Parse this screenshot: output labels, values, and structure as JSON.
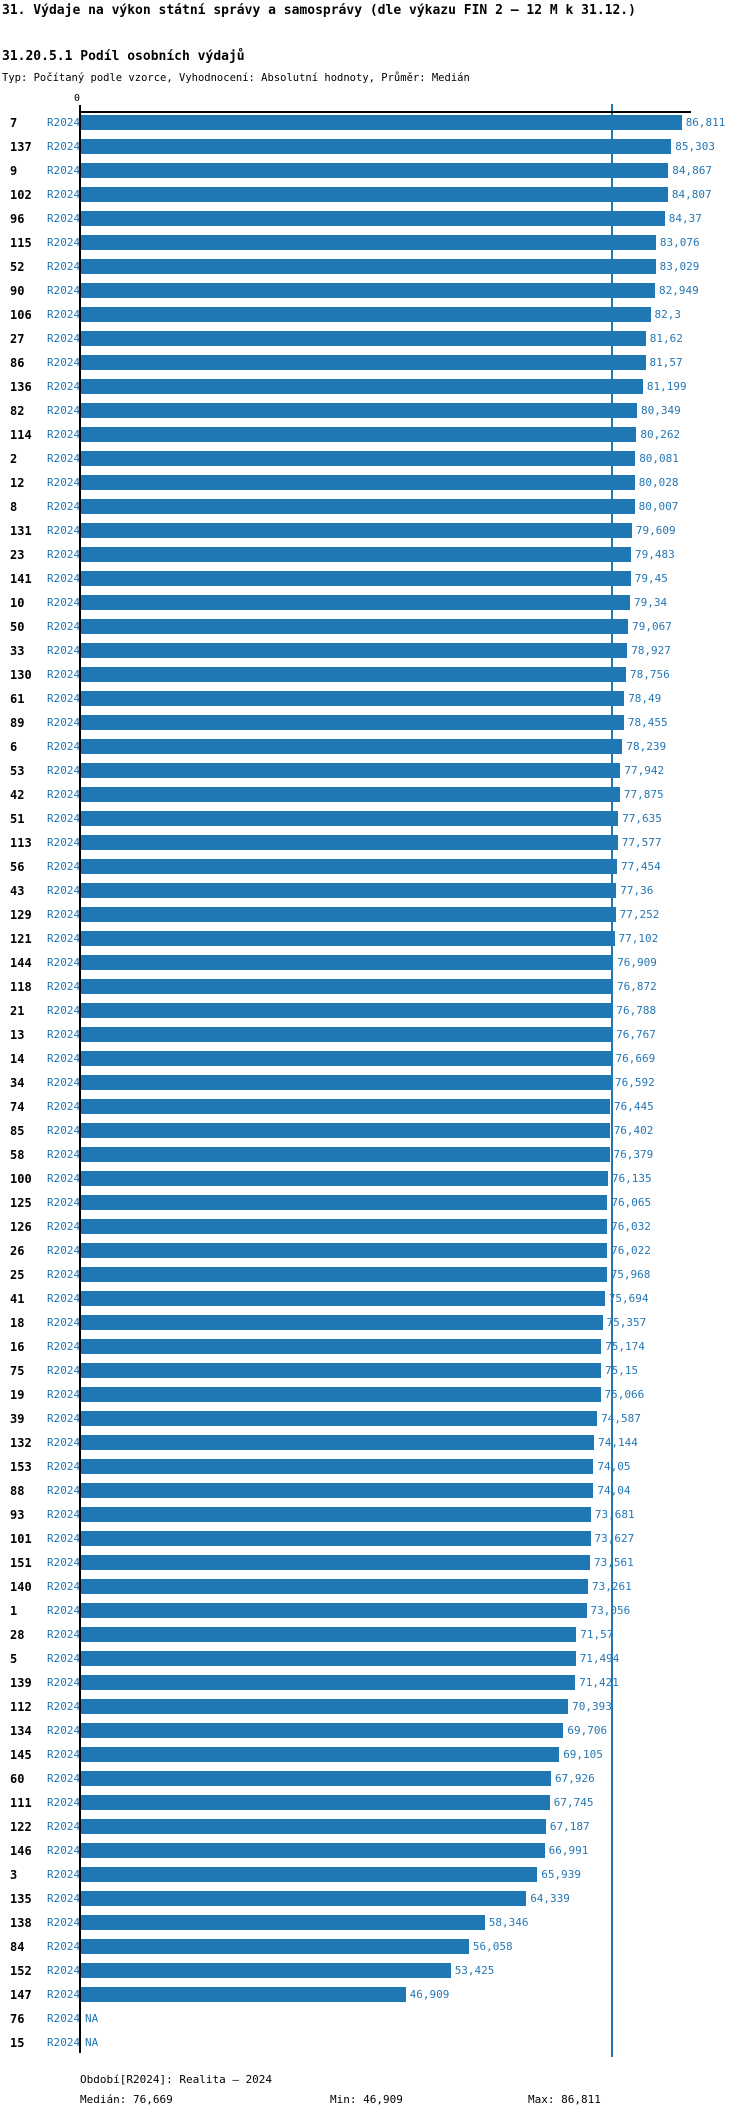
{
  "header": {
    "title": "31. Výdaje na výkon státní správy a samosprávy (dle výkazu FIN 2 – 12 M k 31.12.)",
    "subtitle": "31.20.5.1 Podíl osobních výdajů",
    "meta": "Typ: Počítaný podle vzorce, Vyhodnocení: Absolutní hodnoty, Průměr: Medián"
  },
  "axis": {
    "zero_label": "0"
  },
  "period_label": "R2024",
  "na_label": "NA",
  "footer": {
    "period": "Období[R2024]: Realita – 2024",
    "median": "Medián: 76,669",
    "min": "Min: 46,909",
    "max": "Max: 86,811"
  },
  "colors": {
    "bar": "#1f77b4",
    "label_text": "#2577b5",
    "median_line": "#1f77b4",
    "axis": "#000000",
    "background": "#ffffff"
  },
  "chart_data": {
    "type": "bar",
    "orientation": "horizontal",
    "title": "31. Výdaje na výkon státní správy a samosprávy (dle výkazu FIN 2 – 12 M k 31.12.)",
    "subtitle": "31.20.5.1 Podíl osobních výdajů",
    "xlabel": "",
    "ylabel": "",
    "xlim": [
      0,
      87.8
    ],
    "grid": false,
    "legend_position": "none",
    "median": 76.669,
    "min": 46.909,
    "max": 86.811,
    "median_line": true,
    "categories": [
      7,
      137,
      9,
      102,
      96,
      115,
      52,
      90,
      106,
      27,
      86,
      136,
      82,
      114,
      2,
      12,
      8,
      131,
      23,
      141,
      10,
      50,
      33,
      130,
      61,
      89,
      6,
      53,
      42,
      51,
      113,
      56,
      43,
      129,
      121,
      144,
      118,
      21,
      13,
      14,
      34,
      74,
      85,
      58,
      100,
      125,
      126,
      26,
      25,
      41,
      18,
      16,
      75,
      19,
      39,
      132,
      153,
      88,
      93,
      101,
      151,
      140,
      1,
      28,
      5,
      139,
      112,
      134,
      145,
      60,
      111,
      122,
      146,
      3,
      135,
      138,
      84,
      152,
      147,
      76,
      15
    ],
    "series": [
      {
        "name": "R2024",
        "values": [
          86.811,
          85.303,
          84.867,
          84.807,
          84.37,
          83.076,
          83.029,
          82.949,
          82.3,
          81.62,
          81.57,
          81.199,
          80.349,
          80.262,
          80.081,
          80.028,
          80.007,
          79.609,
          79.483,
          79.45,
          79.34,
          79.067,
          78.927,
          78.756,
          78.49,
          78.455,
          78.239,
          77.942,
          77.875,
          77.635,
          77.577,
          77.454,
          77.36,
          77.252,
          77.102,
          76.909,
          76.872,
          76.788,
          76.767,
          76.669,
          76.592,
          76.445,
          76.402,
          76.379,
          76.135,
          76.065,
          76.032,
          76.022,
          75.968,
          75.694,
          75.357,
          75.174,
          75.15,
          75.066,
          74.587,
          74.144,
          74.05,
          74.04,
          73.681,
          73.627,
          73.561,
          73.261,
          73.056,
          71.57,
          71.494,
          71.421,
          70.393,
          69.706,
          69.105,
          67.926,
          67.745,
          67.187,
          66.991,
          65.939,
          64.339,
          58.346,
          56.058,
          53.425,
          46.909,
          null,
          null
        ]
      }
    ],
    "value_labels": [
      "86,811",
      "85,303",
      "84,867",
      "84,807",
      "84,37",
      "83,076",
      "83,029",
      "82,949",
      "82,3",
      "81,62",
      "81,57",
      "81,199",
      "80,349",
      "80,262",
      "80,081",
      "80,028",
      "80,007",
      "79,609",
      "79,483",
      "79,45",
      "79,34",
      "79,067",
      "78,927",
      "78,756",
      "78,49",
      "78,455",
      "78,239",
      "77,942",
      "77,875",
      "77,635",
      "77,577",
      "77,454",
      "77,36",
      "77,252",
      "77,102",
      "76,909",
      "76,872",
      "76,788",
      "76,767",
      "76,669",
      "76,592",
      "76,445",
      "76,402",
      "76,379",
      "76,135",
      "76,065",
      "76,032",
      "76,022",
      "75,968",
      "75,694",
      "75,357",
      "75,174",
      "75,15",
      "75,066",
      "74,587",
      "74,144",
      "74,05",
      "74,04",
      "73,681",
      "73,627",
      "73,561",
      "73,261",
      "73,056",
      "71,57",
      "71,494",
      "71,421",
      "70,393",
      "69,706",
      "69,105",
      "67,926",
      "67,745",
      "67,187",
      "66,991",
      "65,939",
      "64,339",
      "58,346",
      "56,058",
      "53,425",
      "46,909",
      "NA",
      "NA"
    ]
  }
}
